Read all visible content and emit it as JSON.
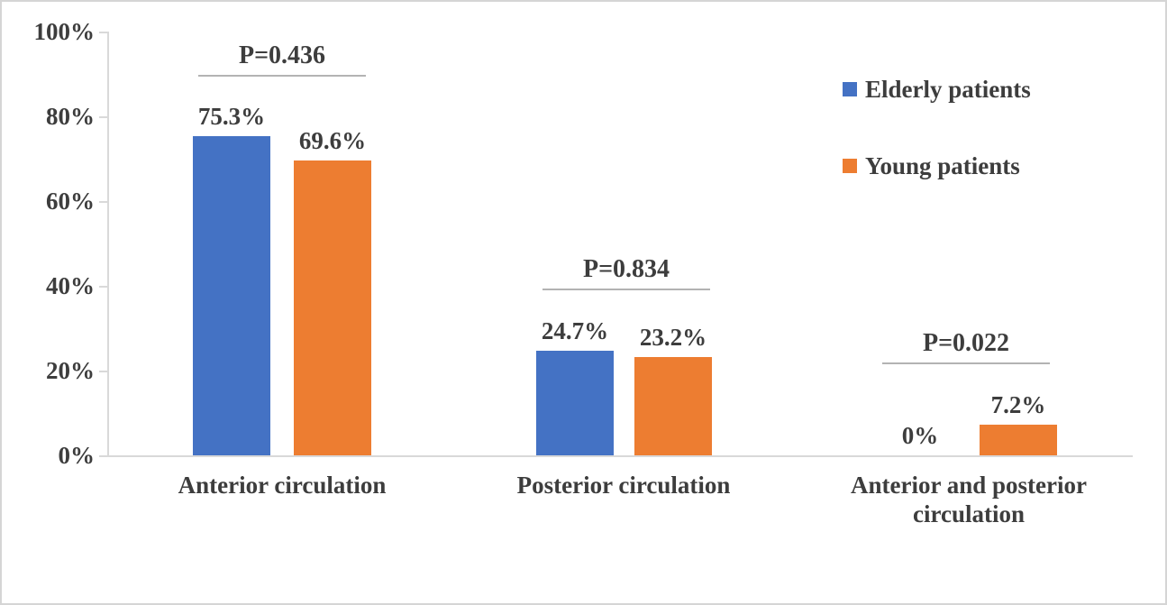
{
  "chart_data": {
    "type": "bar",
    "title": "",
    "categories": [
      "Anterior circulation",
      "Posterior circulation",
      "Anterior and posterior circulation"
    ],
    "series": [
      {
        "name": "Elderly patients",
        "color": "#4472C4",
        "values": [
          75.3,
          24.7,
          0
        ],
        "labels": [
          "75.3%",
          "24.7%",
          "0%"
        ]
      },
      {
        "name": "Young patients",
        "color": "#ED7D31",
        "values": [
          69.6,
          23.2,
          7.2
        ],
        "labels": [
          "69.6%",
          "23.2%",
          "7.2%"
        ]
      }
    ],
    "annotations": {
      "p_values": [
        "P=0.436",
        "P=0.834",
        "P=0.022"
      ]
    },
    "y_ticks": [
      "0%",
      "20%",
      "40%",
      "60%",
      "80%",
      "100%"
    ],
    "ylim": [
      0,
      100
    ],
    "xlabel": "",
    "ylabel": "",
    "grid": false,
    "legend_position": "right"
  },
  "colors": {
    "elderly_blue": "#4472C4",
    "young_orange": "#ED7D31",
    "axis_gray": "#d9d9d9",
    "p_line_gray": "#b3b3b3",
    "text_gray": "#3d3d3d"
  }
}
